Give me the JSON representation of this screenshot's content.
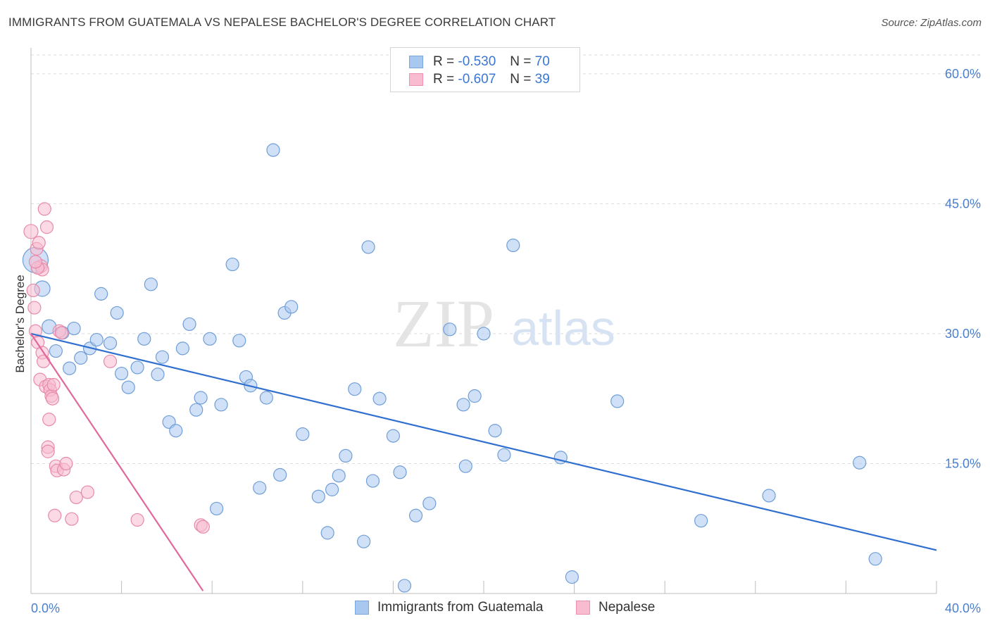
{
  "title": "IMMIGRANTS FROM GUATEMALA VS NEPALESE BACHELOR'S DEGREE CORRELATION CHART",
  "source": "Source: ZipAtlas.com",
  "watermark": {
    "zip": "ZIP",
    "atlas": "atlas"
  },
  "legend": {
    "rows": [
      {
        "r_label": "R = ",
        "r_value": "-0.530",
        "n_label": "N = ",
        "n_value": "70",
        "color": "#a9c8f0",
        "border": "#7aa6df"
      },
      {
        "r_label": "R = ",
        "r_value": "-0.607",
        "n_label": "N = ",
        "n_value": "39",
        "color": "#f7bcd0",
        "border": "#ec8fb0"
      }
    ]
  },
  "chart_data": {
    "type": "scatter",
    "title": "IMMIGRANTS FROM GUATEMALA VS NEPALESE BACHELOR'S DEGREE CORRELATION CHART",
    "xlabel": "",
    "ylabel": "Bachelor's Degree",
    "xlim": [
      0,
      40
    ],
    "ylim": [
      0,
      63
    ],
    "x_tick_labels": [
      "0.0%",
      "40.0%"
    ],
    "y_ticks": [
      15,
      30,
      45,
      60
    ],
    "y_tick_labels": [
      "15.0%",
      "30.0%",
      "45.0%",
      "60.0%"
    ],
    "grid": "horizontal dashed",
    "legend_placement": "bottom-center",
    "series": [
      {
        "name": "Immigrants from Guatemala",
        "color": "#a9c8f0",
        "stroke": "#6f9ed8",
        "trend": {
          "x": [
            0,
            40
          ],
          "y": [
            30.0,
            5.0
          ],
          "color": "#2f6fcf"
        },
        "points": [
          [
            0.2,
            38.5,
            18
          ],
          [
            0.5,
            35.2,
            11
          ],
          [
            0.8,
            30.8,
            10
          ],
          [
            1.1,
            28.0,
            9
          ],
          [
            1.4,
            30.1,
            9
          ],
          [
            1.7,
            26.0,
            9
          ],
          [
            1.9,
            30.6,
            9
          ],
          [
            2.2,
            27.2,
            9
          ],
          [
            2.6,
            28.3,
            9
          ],
          [
            2.9,
            29.3,
            9
          ],
          [
            3.1,
            34.6,
            9
          ],
          [
            3.5,
            28.9,
            9
          ],
          [
            3.8,
            32.4,
            9
          ],
          [
            4.0,
            25.4,
            9
          ],
          [
            4.3,
            23.8,
            9
          ],
          [
            4.7,
            26.1,
            9
          ],
          [
            5.0,
            29.4,
            9
          ],
          [
            5.3,
            35.7,
            9
          ],
          [
            5.6,
            25.3,
            9
          ],
          [
            5.8,
            27.3,
            9
          ],
          [
            6.1,
            19.8,
            9
          ],
          [
            6.4,
            18.8,
            9
          ],
          [
            6.7,
            28.3,
            9
          ],
          [
            7.0,
            31.1,
            9
          ],
          [
            7.3,
            21.2,
            9
          ],
          [
            7.5,
            22.6,
            9
          ],
          [
            7.9,
            29.4,
            9
          ],
          [
            8.2,
            9.8,
            9
          ],
          [
            8.4,
            21.8,
            9
          ],
          [
            8.9,
            38.0,
            9
          ],
          [
            9.2,
            29.2,
            9
          ],
          [
            9.5,
            25.0,
            9
          ],
          [
            9.7,
            24.0,
            9
          ],
          [
            10.1,
            12.2,
            9
          ],
          [
            10.4,
            22.6,
            9
          ],
          [
            10.7,
            51.2,
            9
          ],
          [
            11.0,
            13.7,
            9
          ],
          [
            11.2,
            32.4,
            9
          ],
          [
            11.5,
            33.1,
            9
          ],
          [
            12.0,
            18.4,
            9
          ],
          [
            12.7,
            11.2,
            9
          ],
          [
            13.1,
            7.0,
            9
          ],
          [
            13.3,
            12.0,
            9
          ],
          [
            13.6,
            13.6,
            9
          ],
          [
            13.9,
            15.9,
            9
          ],
          [
            14.3,
            23.6,
            9
          ],
          [
            14.7,
            6.0,
            9
          ],
          [
            14.9,
            40.0,
            9
          ],
          [
            15.1,
            13.0,
            9
          ],
          [
            15.4,
            22.5,
            9
          ],
          [
            16.0,
            18.2,
            9
          ],
          [
            16.3,
            14.0,
            9
          ],
          [
            16.5,
            0.9,
            9
          ],
          [
            17.0,
            9.0,
            9
          ],
          [
            17.6,
            10.4,
            9
          ],
          [
            18.5,
            30.5,
            9
          ],
          [
            19.1,
            21.8,
            9
          ],
          [
            19.2,
            14.7,
            9
          ],
          [
            19.6,
            22.8,
            9
          ],
          [
            20.0,
            30.0,
            9
          ],
          [
            20.5,
            18.8,
            9
          ],
          [
            20.9,
            16.0,
            9
          ],
          [
            21.3,
            40.2,
            9
          ],
          [
            23.4,
            15.7,
            9
          ],
          [
            23.9,
            1.9,
            9
          ],
          [
            25.9,
            22.2,
            9
          ],
          [
            29.6,
            8.4,
            9
          ],
          [
            32.6,
            11.3,
            9
          ],
          [
            36.6,
            15.1,
            9
          ],
          [
            37.3,
            4.0,
            9
          ]
        ]
      },
      {
        "name": "Nepalese",
        "color": "#f7bcd0",
        "stroke": "#e889aa",
        "trend": {
          "x": [
            0,
            7.6
          ],
          "y": [
            30.0,
            0.3
          ],
          "color": "#e0689a"
        },
        "points": [
          [
            0.0,
            41.8,
            10
          ],
          [
            0.1,
            35.0,
            9
          ],
          [
            0.15,
            33.0,
            9
          ],
          [
            0.2,
            30.3,
            9
          ],
          [
            0.25,
            39.8,
            9
          ],
          [
            0.3,
            29.0,
            9
          ],
          [
            0.35,
            40.5,
            9
          ],
          [
            0.4,
            24.7,
            9
          ],
          [
            0.45,
            37.8,
            9
          ],
          [
            0.5,
            37.4,
            9
          ],
          [
            0.5,
            27.8,
            9
          ],
          [
            0.55,
            26.8,
            9
          ],
          [
            0.6,
            44.4,
            9
          ],
          [
            0.65,
            23.9,
            9
          ],
          [
            0.7,
            42.3,
            9
          ],
          [
            0.75,
            16.9,
            9
          ],
          [
            0.75,
            16.4,
            9
          ],
          [
            0.8,
            20.1,
            9
          ],
          [
            0.8,
            24.1,
            9
          ],
          [
            0.85,
            23.5,
            9
          ],
          [
            0.9,
            22.8,
            9
          ],
          [
            0.95,
            22.5,
            9
          ],
          [
            1.0,
            24.1,
            9
          ],
          [
            1.05,
            9.0,
            9
          ],
          [
            1.1,
            14.7,
            9
          ],
          [
            1.15,
            14.2,
            9
          ],
          [
            1.25,
            30.3,
            9
          ],
          [
            1.35,
            30.1,
            9
          ],
          [
            1.45,
            14.3,
            9
          ],
          [
            1.55,
            15.0,
            9
          ],
          [
            1.8,
            8.6,
            9
          ],
          [
            2.0,
            11.1,
            9
          ],
          [
            2.5,
            11.7,
            9
          ],
          [
            3.5,
            26.8,
            9
          ],
          [
            4.7,
            8.5,
            9
          ],
          [
            7.5,
            7.9,
            9
          ],
          [
            7.6,
            7.7,
            9
          ],
          [
            0.3,
            37.6,
            9
          ],
          [
            0.2,
            38.3,
            9
          ]
        ]
      }
    ]
  },
  "axis": {
    "y_title": "Bachelor's Degree",
    "x_left": "0.0%",
    "x_right": "40.0%",
    "y_ticks": [
      "15.0%",
      "30.0%",
      "45.0%",
      "60.0%"
    ]
  },
  "bottom_legend": {
    "item1": "Immigrants from Guatemala",
    "item2": "Nepalese"
  }
}
